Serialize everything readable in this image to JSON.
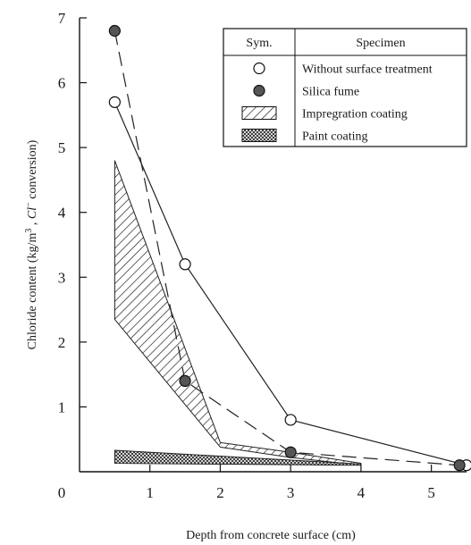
{
  "chart_data": {
    "type": "line",
    "xlabel": "Depth from concrete surface (cm)",
    "ylabel_parts": [
      "Chloride content (kg/m",
      "3",
      " , ",
      "Cl",
      "−",
      " conversion)"
    ],
    "xlim": [
      0,
      5.5
    ],
    "ylim": [
      0,
      7
    ],
    "x_ticks": [
      "0",
      "1",
      "2",
      "3",
      "4",
      "5"
    ],
    "y_ticks": [
      "1",
      "2",
      "3",
      "4",
      "5",
      "6",
      "7"
    ],
    "series": [
      {
        "name": "Without surface treatment",
        "marker": "open-circle",
        "line_style": "solid",
        "x": [
          0.5,
          1.5,
          3.0,
          5.5
        ],
        "y": [
          5.7,
          3.2,
          0.8,
          0.1
        ]
      },
      {
        "name": "Silica fume",
        "marker": "filled-circle",
        "line_style": "dashed",
        "x": [
          0.5,
          1.5,
          3.0,
          5.4
        ],
        "y": [
          6.8,
          1.4,
          0.3,
          0.1
        ]
      }
    ],
    "bands": [
      {
        "name": "Impregration coating",
        "fill": "hatch",
        "x": [
          0.5,
          2.0,
          3.0,
          4.0
        ],
        "y_upper": [
          4.8,
          0.45,
          0.3,
          0.13
        ],
        "y_lower": [
          2.35,
          0.38,
          0.22,
          0.1
        ]
      },
      {
        "name": "Paint coating",
        "fill": "crosshatch",
        "x": [
          0.5,
          4.0
        ],
        "y_upper": [
          0.33,
          0.12
        ],
        "y_lower": [
          0.13,
          0.1
        ]
      }
    ],
    "legend": {
      "position": "top-right",
      "header_sym": "Sym.",
      "header_specimen": "Specimen",
      "entries": [
        {
          "symbol": "open-circle",
          "label": "Without surface treatment"
        },
        {
          "symbol": "filled-circle",
          "label": "Silica fume"
        },
        {
          "symbol": "hatch",
          "label": "Impregration coating"
        },
        {
          "symbol": "crosshatch",
          "label": "Paint coating"
        }
      ]
    }
  }
}
